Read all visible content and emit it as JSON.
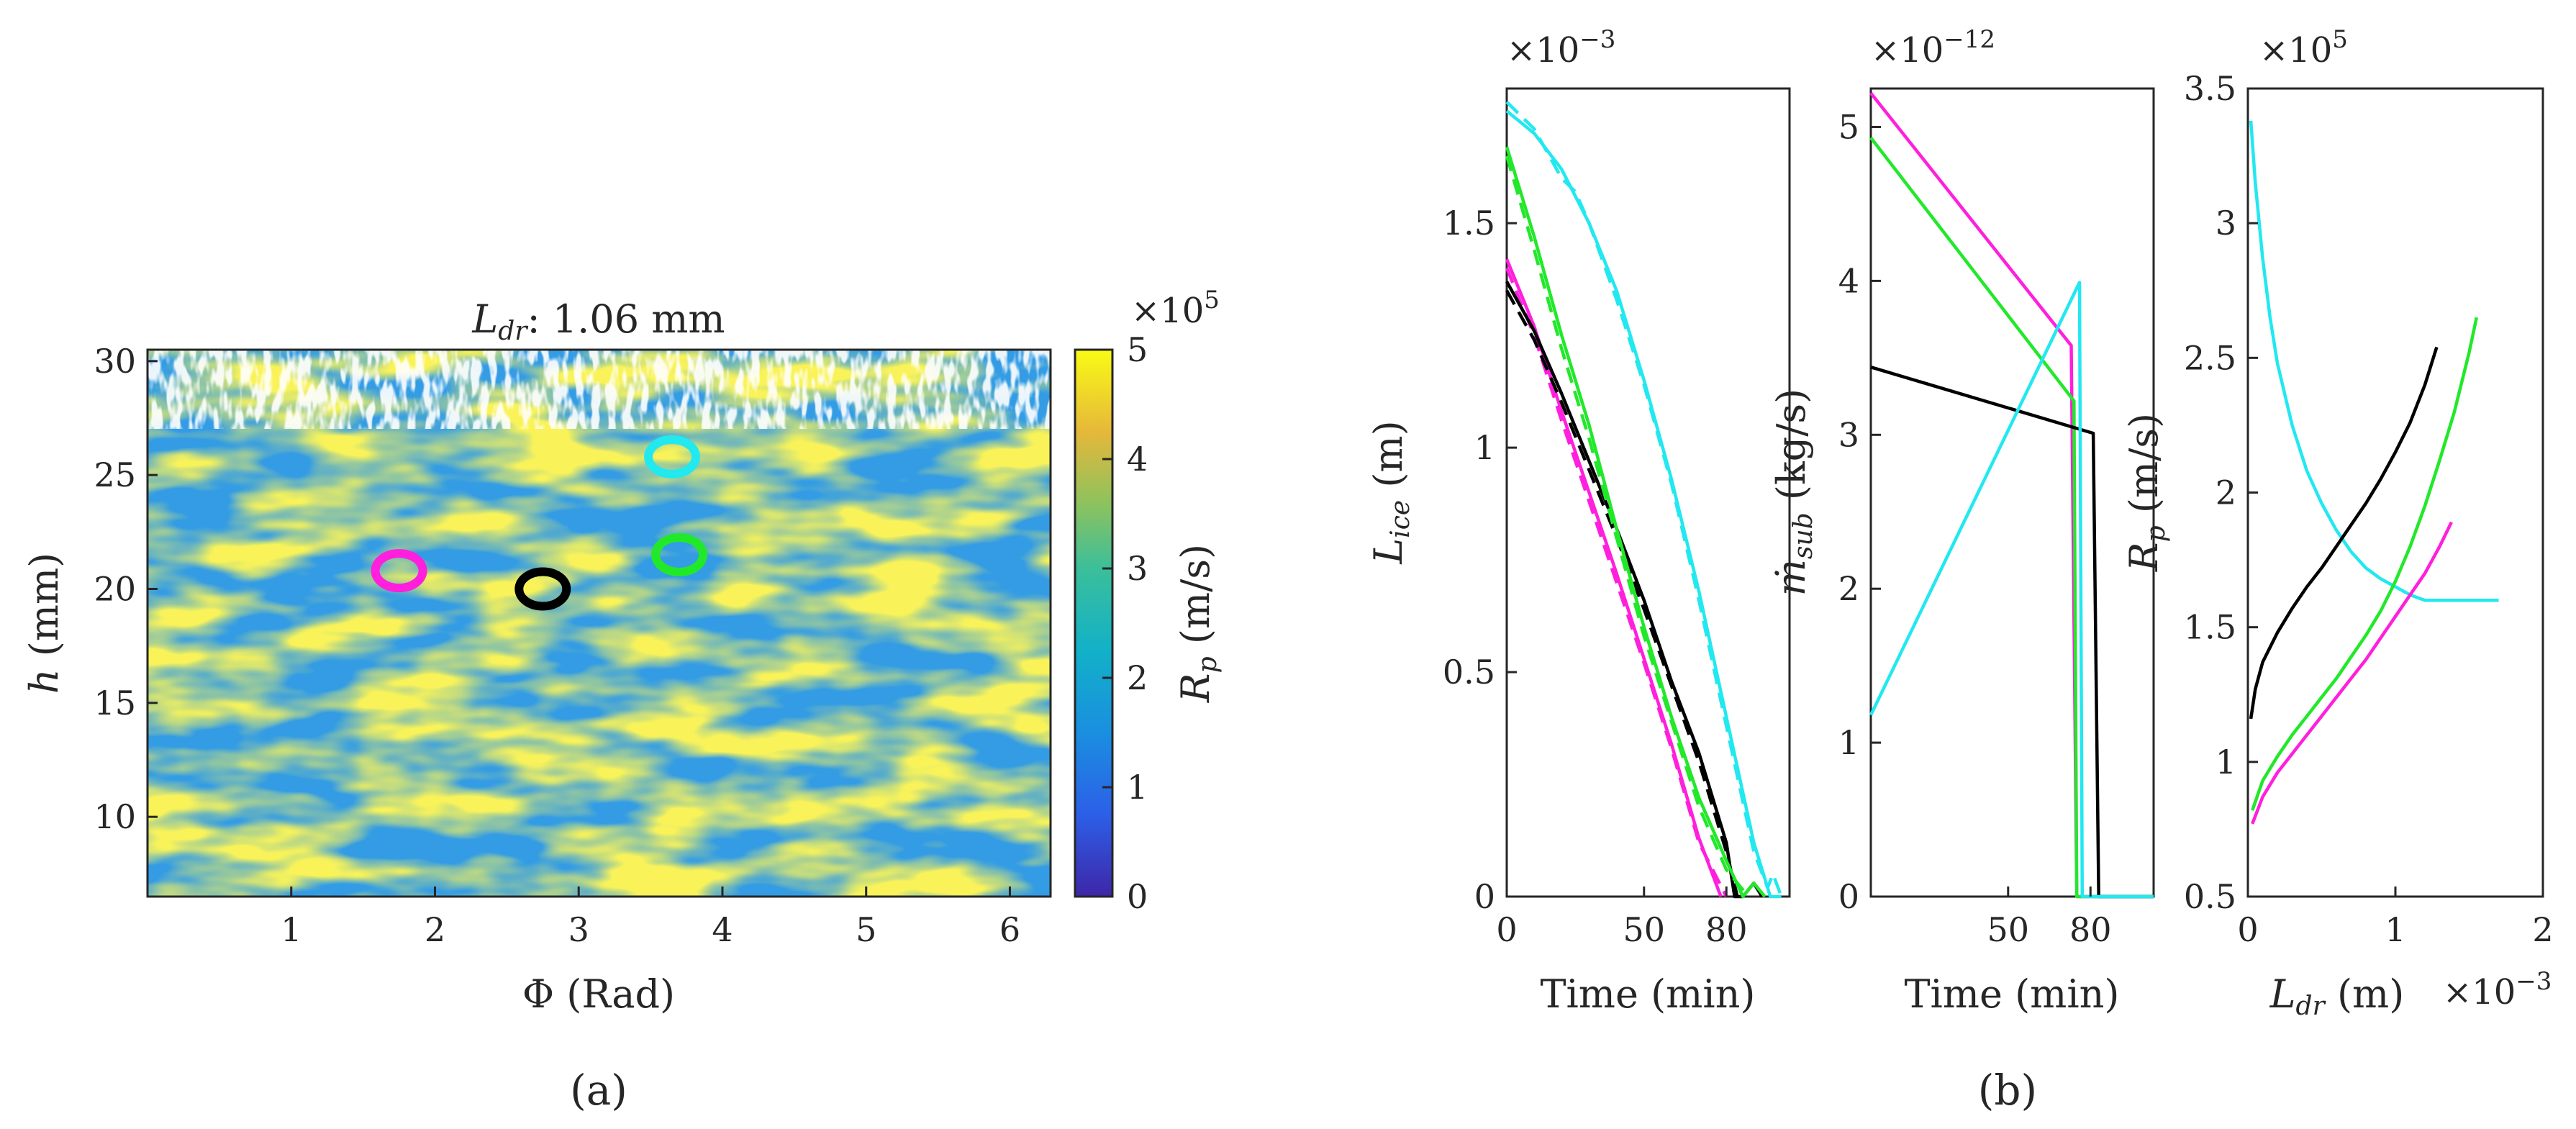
{
  "panel_labels": {
    "a": "(a)",
    "b": "(b)"
  },
  "chart_data": [
    {
      "type": "heatmap",
      "panel": "a",
      "title_symbol": "L",
      "title_sub": "dr",
      "title_value": ": 1.06 mm",
      "xlabel": "Φ (Rad)",
      "ylabel_symbol": "h",
      "ylabel_unit": " (mm)",
      "xlim": [
        0,
        6.283
      ],
      "ylim": [
        6.5,
        30.5
      ],
      "xticks": [
        1,
        2,
        3,
        4,
        5,
        6
      ],
      "yticks": [
        10,
        15,
        20,
        25,
        30
      ],
      "colorbar": {
        "label_symbol": "R",
        "label_sub": "p",
        "label_unit": " (m/s)",
        "ticks": [
          0,
          1,
          2,
          3,
          4,
          5
        ],
        "multiplier_base": "×10",
        "multiplier_exp": "5",
        "range": [
          0,
          500000
        ]
      },
      "markers": [
        {
          "name": "magenta",
          "color": "#ff1fdc",
          "phi": 1.75,
          "h": 20.8
        },
        {
          "name": "black",
          "color": "#000000",
          "phi": 2.75,
          "h": 20.0
        },
        {
          "name": "cyan",
          "color": "#22e8f0",
          "phi": 3.65,
          "h": 25.8
        },
        {
          "name": "green",
          "color": "#22e82a",
          "phi": 3.7,
          "h": 21.5
        }
      ]
    },
    {
      "type": "line",
      "panel": "b1",
      "xlabel": "Time (min)",
      "ylabel_symbol": "L",
      "ylabel_sub": "ice",
      "ylabel_unit": " (m)",
      "multiplier_base": "×10",
      "multiplier_exp": "−3",
      "xlim": [
        0,
        103
      ],
      "ylim": [
        0,
        1.8
      ],
      "xticks": [
        0,
        50,
        80
      ],
      "yticks": [
        0,
        0.5,
        1,
        1.5
      ],
      "ytick_labels": [
        "0",
        "0.5",
        "1",
        "1.5"
      ],
      "series": [
        {
          "name": "magenta",
          "color": "#ff1fdc",
          "x": [
            0,
            10,
            20,
            30,
            40,
            50,
            60,
            70,
            78
          ],
          "y": [
            1.42,
            1.27,
            1.08,
            0.9,
            0.72,
            0.53,
            0.34,
            0.13,
            0.0
          ]
        },
        {
          "name": "magenta-dashed",
          "color": "#ff1fdc",
          "dashed": true,
          "x": [
            0,
            10,
            20,
            30,
            40,
            50,
            60,
            70,
            80
          ],
          "y": [
            1.4,
            1.25,
            1.06,
            0.88,
            0.7,
            0.52,
            0.33,
            0.12,
            0.0
          ]
        },
        {
          "name": "black",
          "color": "#000000",
          "x": [
            0,
            10,
            20,
            30,
            40,
            50,
            60,
            70,
            80,
            83,
            86,
            90,
            93
          ],
          "y": [
            1.37,
            1.26,
            1.12,
            0.97,
            0.82,
            0.66,
            0.48,
            0.32,
            0.12,
            0.0,
            0.0,
            0.03,
            0.0
          ]
        },
        {
          "name": "black-dashed",
          "color": "#000000",
          "dashed": true,
          "x": [
            0,
            10,
            20,
            30,
            40,
            50,
            60,
            70,
            80,
            84
          ],
          "y": [
            1.35,
            1.24,
            1.1,
            0.95,
            0.8,
            0.64,
            0.47,
            0.3,
            0.1,
            0.0
          ]
        },
        {
          "name": "green",
          "color": "#22e82a",
          "x": [
            0,
            10,
            20,
            30,
            40,
            50,
            60,
            70,
            80,
            86,
            90,
            94
          ],
          "y": [
            1.67,
            1.47,
            1.25,
            1.05,
            0.82,
            0.6,
            0.4,
            0.22,
            0.08,
            0.0,
            0.03,
            0.0
          ]
        },
        {
          "name": "green-dashed",
          "color": "#22e82a",
          "dashed": true,
          "x": [
            0,
            10,
            20,
            30,
            40,
            50,
            60,
            70,
            80,
            88
          ],
          "y": [
            1.65,
            1.44,
            1.22,
            1.02,
            0.8,
            0.58,
            0.39,
            0.2,
            0.06,
            0.0
          ]
        },
        {
          "name": "cyan",
          "color": "#22e8f0",
          "x": [
            0,
            10,
            20,
            30,
            40,
            50,
            60,
            70,
            80,
            90,
            96,
            100
          ],
          "y": [
            1.75,
            1.7,
            1.62,
            1.5,
            1.35,
            1.15,
            0.93,
            0.68,
            0.4,
            0.12,
            0.0,
            0.0
          ]
        },
        {
          "name": "cyan-dashed",
          "color": "#22e8f0",
          "dashed": true,
          "x": [
            0,
            10,
            20,
            25,
            30,
            40,
            50,
            60,
            70,
            80,
            90,
            95,
            97,
            100
          ],
          "y": [
            1.77,
            1.71,
            1.6,
            1.57,
            1.5,
            1.33,
            1.14,
            0.92,
            0.66,
            0.38,
            0.1,
            0.02,
            0.05,
            0.0
          ]
        }
      ]
    },
    {
      "type": "line",
      "panel": "b2",
      "xlabel": "Time (min)",
      "ylabel_symbol": "ṁ",
      "ylabel_sub": "sub",
      "ylabel_unit": " (kg/s)",
      "multiplier_base": "×10",
      "multiplier_exp": "−12",
      "xlim": [
        0,
        103
      ],
      "ylim": [
        0,
        5.25
      ],
      "xticks": [
        50,
        80
      ],
      "yticks": [
        0,
        1,
        2,
        3,
        4,
        5
      ],
      "series": [
        {
          "name": "magenta",
          "color": "#ff1fdc",
          "x": [
            0,
            73,
            75,
            103
          ],
          "y": [
            5.22,
            3.58,
            0,
            0
          ]
        },
        {
          "name": "green",
          "color": "#22e82a",
          "x": [
            0,
            74,
            75,
            103
          ],
          "y": [
            4.93,
            3.22,
            0,
            0
          ]
        },
        {
          "name": "black",
          "color": "#000000",
          "x": [
            0,
            81,
            83,
            103
          ],
          "y": [
            3.44,
            3.01,
            0,
            0
          ]
        },
        {
          "name": "cyan",
          "color": "#22e8f0",
          "x": [
            0,
            76,
            77,
            103
          ],
          "y": [
            1.18,
            3.99,
            0,
            0
          ]
        }
      ]
    },
    {
      "type": "line",
      "panel": "b3",
      "xlabel_symbol": "L",
      "xlabel_sub": "dr",
      "xlabel_unit": " (m)",
      "x_multiplier_base": "×10",
      "x_multiplier_exp": "−3",
      "ylabel_symbol": "R",
      "ylabel_sub": "p",
      "ylabel_unit": " (m/s)",
      "multiplier_base": "×10",
      "multiplier_exp": "5",
      "xlim": [
        0,
        2
      ],
      "ylim": [
        0.5,
        3.5
      ],
      "xticks": [
        0,
        1,
        2
      ],
      "yticks": [
        0.5,
        1,
        1.5,
        2,
        2.5,
        3,
        3.5
      ],
      "ytick_labels": [
        "0.5",
        "1",
        "1.5",
        "2",
        "2.5",
        "3",
        "3.5"
      ],
      "series": [
        {
          "name": "cyan",
          "color": "#22e8f0",
          "x": [
            0.02,
            0.05,
            0.1,
            0.15,
            0.2,
            0.3,
            0.4,
            0.5,
            0.6,
            0.7,
            0.8,
            0.9,
            1.0,
            1.1,
            1.2,
            1.3,
            1.5,
            1.7
          ],
          "y": [
            3.38,
            3.15,
            2.87,
            2.65,
            2.48,
            2.25,
            2.08,
            1.96,
            1.86,
            1.78,
            1.72,
            1.68,
            1.65,
            1.62,
            1.6,
            1.6,
            1.6,
            1.6
          ]
        },
        {
          "name": "black",
          "color": "#000000",
          "x": [
            0.02,
            0.05,
            0.1,
            0.2,
            0.3,
            0.4,
            0.5,
            0.6,
            0.7,
            0.8,
            0.9,
            1.0,
            1.1,
            1.2,
            1.28
          ],
          "y": [
            1.16,
            1.27,
            1.37,
            1.48,
            1.57,
            1.65,
            1.72,
            1.8,
            1.88,
            1.96,
            2.05,
            2.15,
            2.26,
            2.4,
            2.54
          ]
        },
        {
          "name": "green",
          "color": "#22e82a",
          "x": [
            0.03,
            0.1,
            0.2,
            0.3,
            0.4,
            0.5,
            0.6,
            0.7,
            0.8,
            0.9,
            1.0,
            1.1,
            1.2,
            1.3,
            1.4,
            1.5,
            1.55
          ],
          "y": [
            0.82,
            0.93,
            1.02,
            1.1,
            1.17,
            1.24,
            1.31,
            1.39,
            1.47,
            1.56,
            1.67,
            1.8,
            1.95,
            2.12,
            2.3,
            2.52,
            2.65
          ]
        },
        {
          "name": "magenta",
          "color": "#ff1fdc",
          "x": [
            0.03,
            0.1,
            0.2,
            0.3,
            0.4,
            0.5,
            0.6,
            0.7,
            0.8,
            0.9,
            1.0,
            1.1,
            1.2,
            1.3,
            1.38
          ],
          "y": [
            0.77,
            0.87,
            0.96,
            1.03,
            1.1,
            1.17,
            1.24,
            1.31,
            1.38,
            1.46,
            1.54,
            1.62,
            1.7,
            1.8,
            1.89
          ]
        }
      ]
    }
  ]
}
